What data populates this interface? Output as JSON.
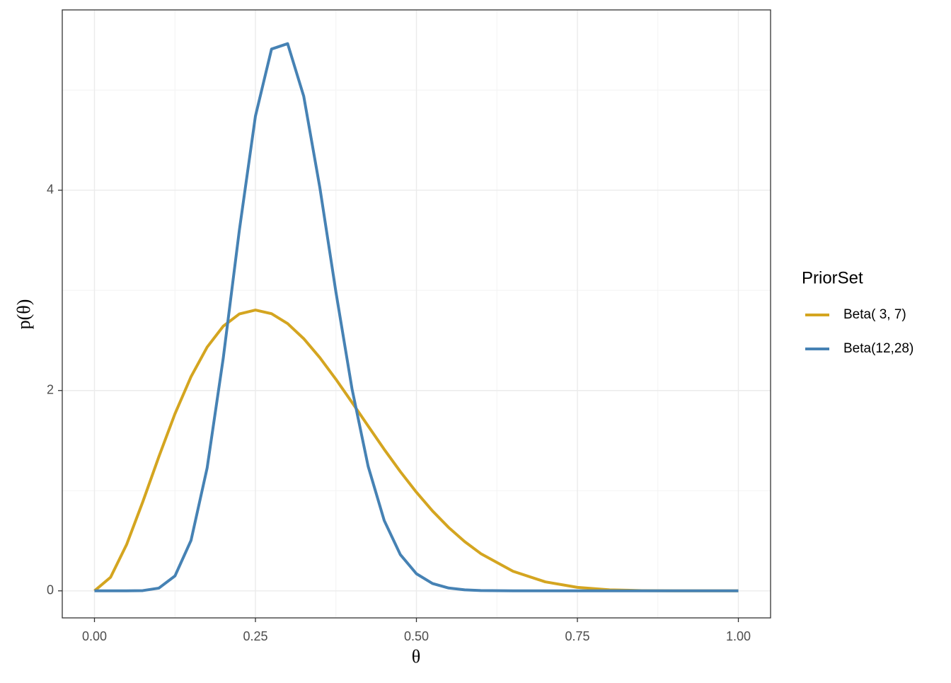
{
  "chart_data": {
    "type": "line",
    "xlabel": "θ",
    "ylabel": "p(θ)",
    "legend_title": "PriorSet",
    "legend_position": "right",
    "grid": true,
    "x": [
      0,
      0.025,
      0.05,
      0.075,
      0.1,
      0.125,
      0.15,
      0.175,
      0.2,
      0.225,
      0.25,
      0.275,
      0.3,
      0.325,
      0.35,
      0.375,
      0.4,
      0.425,
      0.45,
      0.475,
      0.5,
      0.525,
      0.55,
      0.575,
      0.6,
      0.65,
      0.7,
      0.75,
      0.8,
      0.85,
      0.9,
      0.95,
      1
    ],
    "series": [
      {
        "name": "Beta( 3, 7)",
        "color": "#d4a520",
        "values": [
          0,
          0.1353,
          0.4631,
          0.8879,
          1.3392,
          1.7671,
          2.1383,
          2.4334,
          2.6424,
          2.7645,
          2.8032,
          2.7672,
          2.6683,
          2.5178,
          2.3282,
          2.1121,
          1.8812,
          1.6455,
          1.4126,
          1.1906,
          0.9844,
          0.7974,
          0.633,
          0.4912,
          0.3716,
          0.1957,
          0.09,
          0.0346,
          0.0103,
          0.0021,
          0.0002,
          0,
          0
        ]
      },
      {
        "name": "Beta(12,28)",
        "color": "#4682b4",
        "values": [
          0,
          0,
          6e-05,
          0.0024,
          0.0273,
          0.1485,
          0.5045,
          1.2275,
          2.323,
          3.6,
          4.74,
          5.409,
          5.463,
          4.938,
          4.027,
          2.983,
          2.016,
          1.244,
          0.702,
          0.362,
          0.1707,
          0.0731,
          0.0283,
          0.0099,
          0.0031,
          0.0002,
          0,
          0,
          0,
          0,
          0,
          0,
          0
        ]
      }
    ],
    "xlim": [
      -0.05,
      1.05
    ],
    "xticks": [
      {
        "value": 0,
        "label": "0.00"
      },
      {
        "value": 0.25,
        "label": "0.25"
      },
      {
        "value": 0.5,
        "label": "0.50"
      },
      {
        "value": 0.75,
        "label": "0.75"
      },
      {
        "value": 1,
        "label": "1.00"
      }
    ],
    "ylim": [
      -0.27,
      5.8
    ],
    "yticks": [
      0,
      2,
      4
    ]
  }
}
